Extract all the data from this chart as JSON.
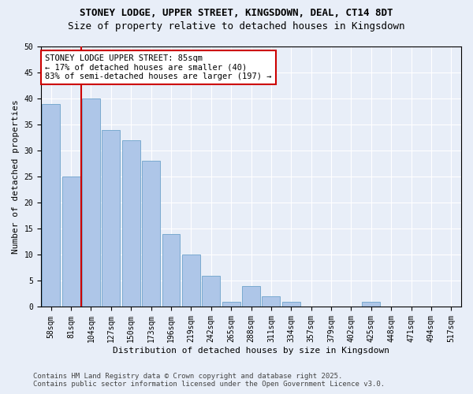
{
  "title_line1": "STONEY LODGE, UPPER STREET, KINGSDOWN, DEAL, CT14 8DT",
  "title_line2": "Size of property relative to detached houses in Kingsdown",
  "xlabel": "Distribution of detached houses by size in Kingsdown",
  "ylabel": "Number of detached properties",
  "categories": [
    "58sqm",
    "81sqm",
    "104sqm",
    "127sqm",
    "150sqm",
    "173sqm",
    "196sqm",
    "219sqm",
    "242sqm",
    "265sqm",
    "288sqm",
    "311sqm",
    "334sqm",
    "357sqm",
    "379sqm",
    "402sqm",
    "425sqm",
    "448sqm",
    "471sqm",
    "494sqm",
    "517sqm"
  ],
  "values": [
    39,
    25,
    40,
    34,
    32,
    28,
    14,
    10,
    6,
    1,
    4,
    2,
    1,
    0,
    0,
    0,
    1,
    0,
    0,
    0,
    0
  ],
  "bar_color": "#aec6e8",
  "bar_edge_color": "#7aaad0",
  "annotation_text_line1": "STONEY LODGE UPPER STREET: 85sqm",
  "annotation_text_line2": "← 17% of detached houses are smaller (40)",
  "annotation_text_line3": "83% of semi-detached houses are larger (197) →",
  "annotation_box_facecolor": "#ffffff",
  "annotation_box_edgecolor": "#cc0000",
  "red_line_color": "#cc0000",
  "red_line_x": 1.5,
  "ylim": [
    0,
    50
  ],
  "yticks": [
    0,
    5,
    10,
    15,
    20,
    25,
    30,
    35,
    40,
    45,
    50
  ],
  "footer_line1": "Contains HM Land Registry data © Crown copyright and database right 2025.",
  "footer_line2": "Contains public sector information licensed under the Open Government Licence v3.0.",
  "bg_color": "#e8eef8",
  "plot_bg_color": "#e8eef8",
  "title_fontsize": 9,
  "subtitle_fontsize": 9,
  "axis_label_fontsize": 8,
  "tick_fontsize": 7,
  "annotation_fontsize": 7.5,
  "footer_fontsize": 6.5
}
